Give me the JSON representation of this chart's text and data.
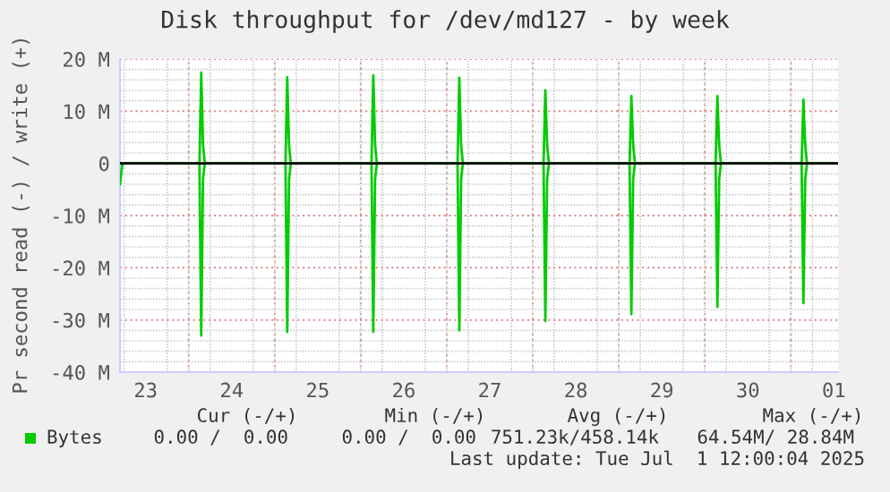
{
  "chart_data": {
    "type": "line",
    "title": "Disk throughput for /dev/md127 - by week",
    "ylabel": "Pr second read (-) / write (+)",
    "x": [
      "2025-06-23T04:50",
      "2025-06-23T05:30",
      "2025-06-24T03:00",
      "2025-06-24T03:30",
      "2025-06-24T04:00",
      "2025-06-24T04:30",
      "2025-06-25T03:00",
      "2025-06-25T03:30",
      "2025-06-25T04:00",
      "2025-06-25T04:30",
      "2025-06-26T03:00",
      "2025-06-26T03:30",
      "2025-06-26T04:00",
      "2025-06-26T04:30",
      "2025-06-27T03:00",
      "2025-06-27T03:30",
      "2025-06-27T04:00",
      "2025-06-27T04:30",
      "2025-06-28T03:00",
      "2025-06-28T03:30",
      "2025-06-28T04:00",
      "2025-06-28T04:30",
      "2025-06-29T03:00",
      "2025-06-29T03:30",
      "2025-06-29T04:00",
      "2025-06-29T04:30",
      "2025-06-30T03:00",
      "2025-06-30T03:30",
      "2025-06-30T04:00",
      "2025-06-30T04:30",
      "2025-07-01T03:00",
      "2025-07-01T03:30",
      "2025-07-01T04:00",
      "2025-07-01T04:30",
      "2025-07-01T13:10"
    ],
    "series": [
      {
        "name": "Bytes",
        "color": "#00cc00",
        "values": [
          0,
          0,
          0,
          17.4,
          3.5,
          0,
          0,
          16.5,
          3.5,
          0,
          0,
          16.9,
          3.5,
          0,
          0,
          16.4,
          3.5,
          0,
          0,
          14.0,
          3.5,
          0,
          0,
          12.9,
          3.5,
          0,
          0,
          12.9,
          3.5,
          0,
          0,
          12.2,
          3.5,
          0,
          0
        ]
      },
      {
        "color": "#00cc00",
        "values": [
          -4,
          0,
          0,
          -33.0,
          -3,
          0,
          0,
          -32.3,
          -3,
          0,
          0,
          -32.3,
          -3,
          0,
          0,
          -32.0,
          -3,
          0,
          0,
          -30.2,
          -3,
          0,
          0,
          -28.9,
          -3,
          0,
          0,
          -27.5,
          -3,
          0,
          0,
          -26.8,
          -3,
          0,
          0
        ]
      }
    ],
    "ref_lines": [
      {
        "axis": "y",
        "value": 0,
        "color": "#000000"
      }
    ],
    "xlim": [
      "2025-06-23T04:50",
      "2025-07-01T13:10"
    ],
    "xticks": [
      {
        "value": "2025-06-23T12:00",
        "label": "23"
      },
      {
        "value": "2025-06-24T12:00",
        "label": "24"
      },
      {
        "value": "2025-06-25T12:00",
        "label": "25"
      },
      {
        "value": "2025-06-26T12:00",
        "label": "26"
      },
      {
        "value": "2025-06-27T12:00",
        "label": "27"
      },
      {
        "value": "2025-06-28T12:00",
        "label": "28"
      },
      {
        "value": "2025-06-29T12:00",
        "label": "29"
      },
      {
        "value": "2025-06-30T12:00",
        "label": "30"
      },
      {
        "value": "2025-07-01T12:00",
        "label": "01"
      },
      {
        "value": "2025-06-24T00:00",
        "label": null
      },
      {
        "value": "2025-06-25T00:00",
        "label": null
      },
      {
        "value": "2025-06-26T00:00",
        "label": null
      },
      {
        "value": "2025-06-27T00:00",
        "label": null
      },
      {
        "value": "2025-06-28T00:00",
        "label": null
      },
      {
        "value": "2025-06-29T00:00",
        "label": null
      },
      {
        "value": "2025-06-30T00:00",
        "label": null
      },
      {
        "value": "2025-07-01T00:00",
        "label": null
      }
    ],
    "ylim": [
      -40,
      20
    ],
    "yticks": [
      {
        "value": -40,
        "label": "-40 M"
      },
      {
        "value": -30,
        "label": "-30 M"
      },
      {
        "value": -20,
        "label": "-20 M"
      },
      {
        "value": -10,
        "label": "-10 M"
      },
      {
        "value": 0,
        "label": "0"
      },
      {
        "value": 10,
        "label": "10 M"
      },
      {
        "value": 20,
        "label": "20 M"
      }
    ],
    "grid": true,
    "legend": "bottom left",
    "marker": "none",
    "line_style": "solid",
    "annotations": [
      "Cur (-/+)",
      "Min (-/+)",
      "Avg (-/+)",
      "Max (-/+)",
      "0.00 /  0.00",
      "0.00 /  0.00",
      "751.23k/458.14k",
      "64.54M/ 28.84M",
      "Last update: Tue Jul  1 12:00:04 2025"
    ]
  }
}
